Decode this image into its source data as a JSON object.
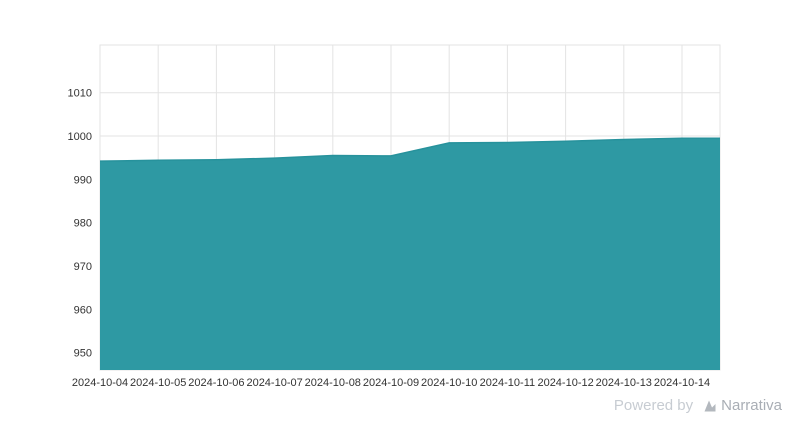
{
  "chart_data": {
    "type": "area",
    "title": "",
    "xlabel": "",
    "ylabel": "",
    "categories": [
      "2024-10-04",
      "2024-10-05",
      "2024-10-06",
      "2024-10-07",
      "2024-10-08",
      "2024-10-09",
      "2024-10-10",
      "2024-10-11",
      "2024-10-12",
      "2024-10-13",
      "2024-10-14"
    ],
    "values": [
      994.2,
      994.4,
      994.5,
      994.9,
      995.5,
      995.4,
      998.4,
      998.5,
      998.8,
      999.2,
      999.5
    ],
    "yticks": [
      950,
      960,
      970,
      980,
      990,
      1000,
      1010
    ],
    "ylim": [
      946,
      1021
    ],
    "grid": true,
    "legend": false,
    "fill_color": "#2e99a3",
    "line_color": "#27929c",
    "grid_color": "#e3e3e3",
    "tick_color": "#333333"
  },
  "watermark": {
    "powered_by": "Powered by",
    "brand": "Narrativa"
  }
}
